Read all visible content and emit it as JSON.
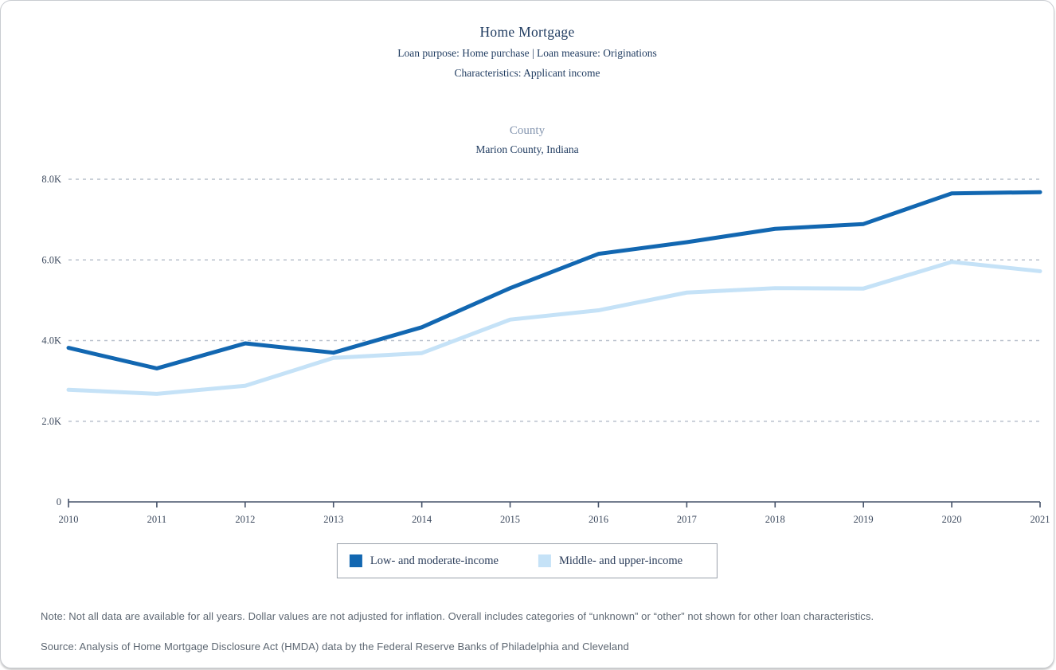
{
  "header": {
    "title": "Home Mortgage",
    "subtitle1": "Loan purpose: Home purchase | Loan measure: Originations",
    "subtitle2": "Characteristics: Applicant income"
  },
  "geo": {
    "label": "County",
    "name": "Marion County, Indiana"
  },
  "chart_data": {
    "type": "line",
    "title": "Home Mortgage — Originations by Applicant income, Marion County, Indiana",
    "categories": [
      "2010",
      "2011",
      "2012",
      "2013",
      "2014",
      "2015",
      "2016",
      "2017",
      "2018",
      "2019",
      "2020",
      "2021"
    ],
    "series": [
      {
        "name": "Low- and moderate-income",
        "color": "#1267b1",
        "values": [
          3820,
          3310,
          3930,
          3700,
          4330,
          5300,
          6150,
          6440,
          6770,
          6890,
          7650,
          7680
        ]
      },
      {
        "name": "Middle- and upper-income",
        "color": "#c5e2f7",
        "values": [
          2780,
          2680,
          2880,
          3570,
          3690,
          4520,
          4750,
          5190,
          5300,
          5290,
          5950,
          5720
        ]
      }
    ],
    "xlabel": "",
    "ylabel": "",
    "ylim": [
      0,
      8000
    ],
    "yticks": [
      0,
      2000,
      4000,
      6000,
      8000
    ],
    "ytick_labels": [
      "0",
      "2.0K",
      "4.0K",
      "6.0K",
      "8.0K"
    ],
    "grid": "horizontal-dashed",
    "legend_position": "bottom-center"
  },
  "notes": {
    "note": "Note: Not all data are available for all years. Dollar values are not adjusted for inflation. Overall includes categories of “unknown” or “other” not shown for other loan characteristics.",
    "source": "Source: Analysis of Home Mortgage Disclosure Act (HMDA) data by the Federal Reserve Banks of Philadelphia and Cleveland"
  }
}
